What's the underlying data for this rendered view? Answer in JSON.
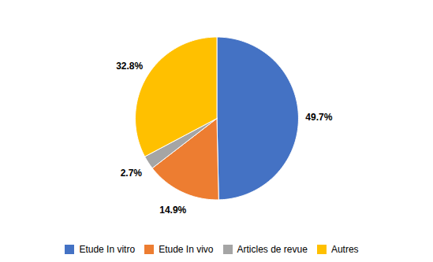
{
  "chart_data": {
    "type": "pie",
    "categories": [
      "Etude In vitro",
      "Etude In vivo",
      "Articles de revue",
      "Autres"
    ],
    "values": [
      49.7,
      14.9,
      2.7,
      32.8
    ],
    "value_labels": [
      "49.7%",
      "14.9%",
      "2.7%",
      "32.8%"
    ],
    "colors": [
      "#4472C4",
      "#ED7D31",
      "#A5A5A5",
      "#FFC000"
    ],
    "data_labels": true,
    "legend": "bottom"
  }
}
